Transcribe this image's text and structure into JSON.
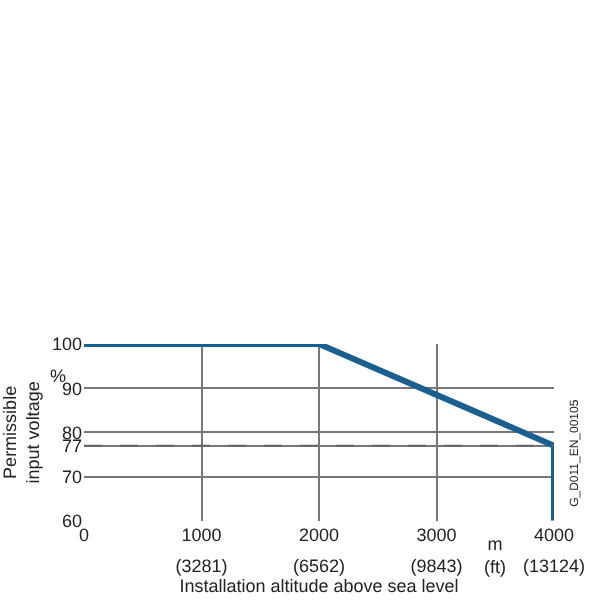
{
  "chart_data": {
    "type": "line",
    "xlabel": "Installation altitude above sea level",
    "ylabel": "Permissible\ninput voltage",
    "x": [
      0,
      2000,
      4000,
      4000
    ],
    "series": [
      {
        "color": "#1a5f8f",
        "values": [
          100,
          100,
          77,
          60
        ]
      }
    ],
    "xlim": [
      0,
      4000
    ],
    "xticks": [
      0,
      1000,
      2000,
      3000,
      4000
    ],
    "x2lim": [
      0,
      13124
    ],
    "x2ticks": [
      {
        "value": 3281,
        "label": "(3281)"
      },
      {
        "value": 6562,
        "label": "(6562)"
      },
      {
        "value": 9843,
        "label": "(9843)"
      },
      {
        "value": 13124,
        "label": "(13124)"
      }
    ],
    "ylim": [
      60,
      100
    ],
    "yticks": [
      60,
      70,
      77,
      80,
      90,
      100
    ],
    "ref_lines": [
      {
        "axis": "y",
        "value": 77,
        "color": "#666666",
        "line_style": "dashed"
      }
    ],
    "annotations": [
      "%",
      "m\n(ft)",
      "G_D011_EN_00105"
    ],
    "grid": true,
    "marker": "none",
    "line_style": "solid"
  }
}
